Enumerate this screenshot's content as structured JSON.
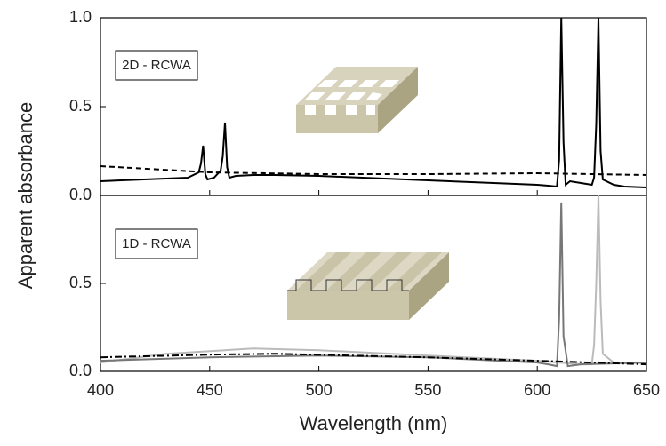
{
  "chart_data": [
    {
      "type": "line",
      "annotation": "2D - RCWA",
      "ylabel": "Apparent absorbance",
      "xlim": [
        400,
        650
      ],
      "ylim": [
        0,
        1
      ],
      "yticks": [
        {
          "value": 0,
          "label": "0.0"
        },
        0.5,
        {
          "value": 1,
          "label": "1.0"
        }
      ],
      "series": [
        {
          "color": "#000000",
          "linestyle": "solid",
          "x": [
            400,
            420,
            440,
            445,
            446,
            447,
            448,
            449,
            452,
            455,
            456,
            457,
            458,
            459,
            462,
            470,
            480,
            500,
            520,
            540,
            560,
            580,
            600,
            605,
            609,
            610,
            611,
            612,
            613,
            615,
            620,
            625,
            626,
            627,
            628,
            629,
            630,
            635,
            640,
            650
          ],
          "values": [
            0.08,
            0.09,
            0.1,
            0.13,
            0.18,
            0.28,
            0.12,
            0.09,
            0.1,
            0.14,
            0.22,
            0.41,
            0.16,
            0.1,
            0.11,
            0.115,
            0.115,
            0.11,
            0.1,
            0.09,
            0.08,
            0.07,
            0.06,
            0.055,
            0.05,
            0.2,
            1.0,
            0.3,
            0.06,
            0.08,
            0.07,
            0.06,
            0.1,
            0.4,
            1.0,
            0.25,
            0.09,
            0.06,
            0.05,
            0.045
          ]
        },
        {
          "color": "#000000",
          "linestyle": "dashed",
          "x": [
            400,
            450,
            500,
            550,
            600,
            650
          ],
          "values": [
            0.165,
            0.13,
            0.12,
            0.12,
            0.125,
            0.115
          ]
        }
      ]
    },
    {
      "type": "line",
      "annotation": "1D - RCWA",
      "xlabel": "Wavelength (nm)",
      "xlim": [
        400,
        650
      ],
      "ylim": [
        0,
        1
      ],
      "xticks": [
        400,
        450,
        500,
        550,
        600,
        650
      ],
      "yticks": [
        {
          "value": 0,
          "label": "0.0"
        },
        0.5
      ],
      "series": [
        {
          "color": "#bbbbbb",
          "linestyle": "solid",
          "x": [
            400,
            430,
            470,
            500,
            550,
            600,
            620,
            625,
            626,
            627,
            628,
            629,
            630,
            635,
            650
          ],
          "values": [
            0.05,
            0.1,
            0.13,
            0.12,
            0.09,
            0.06,
            0.04,
            0.04,
            0.15,
            0.5,
            1.0,
            0.4,
            0.1,
            0.05,
            0.05
          ]
        },
        {
          "color": "#777777",
          "linestyle": "solid",
          "x": [
            400,
            450,
            500,
            550,
            600,
            605,
            609,
            610,
            611,
            612,
            614,
            620,
            650
          ],
          "values": [
            0.06,
            0.08,
            0.09,
            0.08,
            0.05,
            0.04,
            0.03,
            0.3,
            0.96,
            0.2,
            0.03,
            0.04,
            0.05
          ]
        },
        {
          "color": "#000000",
          "linestyle": "dashdot",
          "x": [
            400,
            450,
            480,
            550,
            600,
            650
          ],
          "values": [
            0.08,
            0.095,
            0.1,
            0.08,
            0.06,
            0.04
          ]
        }
      ]
    }
  ]
}
